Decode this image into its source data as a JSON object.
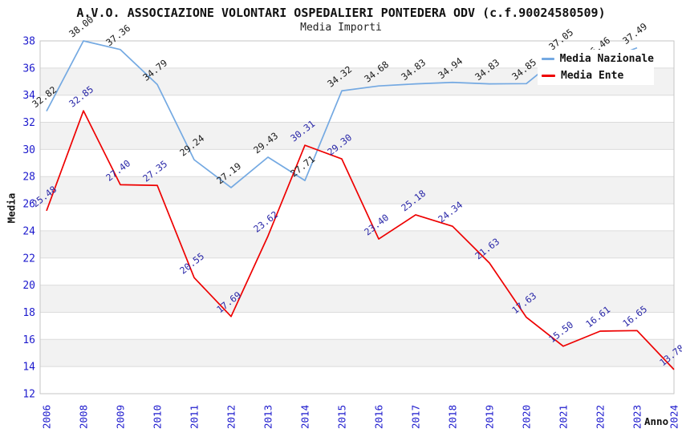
{
  "chart_data": {
    "type": "line",
    "title": "A.V.O. ASSOCIAZIONE VOLONTARI OSPEDALIERI PONTEDERA ODV (c.f.90024580509)",
    "subtitle": "Media Importi",
    "xlabel": "Anno",
    "ylabel": "Media",
    "categories": [
      "2006",
      "2008",
      "2009",
      "2010",
      "2011",
      "2012",
      "2013",
      "2014",
      "2015",
      "2016",
      "2017",
      "2018",
      "2019",
      "2020",
      "2021",
      "2022",
      "2023",
      "2024"
    ],
    "series": [
      {
        "name": "Media Nazionale",
        "color": "#74a9e2",
        "label_color": "#1b1b1b",
        "values": [
          32.82,
          38.0,
          37.36,
          34.79,
          29.24,
          27.19,
          29.43,
          27.71,
          34.32,
          34.68,
          34.83,
          34.94,
          34.83,
          34.85,
          37.05,
          36.46,
          37.49,
          null
        ]
      },
      {
        "name": "Media Ente",
        "color": "#ee0000",
        "label_color": "#2a28a8",
        "values": [
          25.48,
          32.85,
          27.4,
          27.35,
          20.55,
          17.69,
          23.62,
          30.31,
          29.3,
          23.4,
          25.18,
          24.34,
          21.63,
          17.63,
          15.5,
          16.61,
          16.65,
          13.78
        ]
      }
    ],
    "ylim": [
      12,
      38
    ],
    "ytick_step": 2,
    "grid": "horizontal-bands",
    "legend_position": "top-right",
    "colors": {
      "axis_tick_label": "#1d1acd",
      "band_gray": "#f2f2f2",
      "gridline": "#dbdbdb",
      "plot_border": "#c6c6c6"
    }
  }
}
